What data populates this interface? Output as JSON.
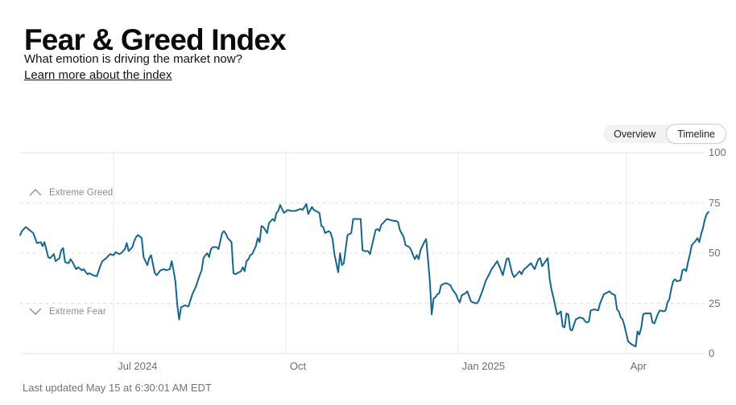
{
  "header": {
    "title": "Fear & Greed Index",
    "subtitle": "What emotion is driving the market now?",
    "link_label": "Learn more about the index"
  },
  "view_toggle": {
    "options": [
      {
        "label": "Overview",
        "selected": false
      },
      {
        "label": "Timeline",
        "selected": true
      }
    ]
  },
  "footer": {
    "last_updated": "Last updated May 15 at 6:30:01 AM EDT"
  },
  "chart_data": {
    "type": "line",
    "title": "Fear & Greed Index timeline",
    "ylim": [
      0,
      100
    ],
    "y_ticks": [
      0,
      25,
      50,
      75,
      100
    ],
    "x_ticks": [
      {
        "date": "2024-07-01",
        "label": "Jul 2024"
      },
      {
        "date": "2024-10-01",
        "label": "Oct"
      },
      {
        "date": "2025-01-01",
        "label": "Jan 2025"
      },
      {
        "date": "2025-04-01",
        "label": "Apr"
      }
    ],
    "thresholds": [
      {
        "value": 75,
        "label": "Extreme Greed",
        "icon": "chevron-up-icon"
      },
      {
        "value": 25,
        "label": "Extreme Fear",
        "icon": "chevron-down-icon"
      }
    ],
    "line_color": "#15668F",
    "grid_solid_color": "#ebebeb",
    "grid_dashed_color": "#d9d9d9",
    "grid": true,
    "legend_position": "none",
    "series": [
      {
        "name": "Fear & Greed Index",
        "points": [
          [
            "2024-05-12",
            59
          ],
          [
            "2024-05-13",
            61
          ],
          [
            "2024-05-15",
            63
          ],
          [
            "2024-05-17",
            61.5
          ],
          [
            "2024-05-19",
            60
          ],
          [
            "2024-05-21",
            55
          ],
          [
            "2024-05-23",
            55.5
          ],
          [
            "2024-05-24",
            53.5
          ],
          [
            "2024-05-25",
            55.5
          ],
          [
            "2024-05-27",
            48
          ],
          [
            "2024-05-28",
            47.5
          ],
          [
            "2024-05-30",
            49.5
          ],
          [
            "2024-05-31",
            46
          ],
          [
            "2024-06-02",
            47.5
          ],
          [
            "2024-06-03",
            51.5
          ],
          [
            "2024-06-04",
            52.5
          ],
          [
            "2024-06-05",
            45.5
          ],
          [
            "2024-06-07",
            45
          ],
          [
            "2024-06-08",
            47
          ],
          [
            "2024-06-09",
            45.5
          ],
          [
            "2024-06-11",
            42
          ],
          [
            "2024-06-12",
            43
          ],
          [
            "2024-06-14",
            41.5
          ],
          [
            "2024-06-15",
            42
          ],
          [
            "2024-06-17",
            39.5
          ],
          [
            "2024-06-18",
            40
          ],
          [
            "2024-06-20",
            39
          ],
          [
            "2024-06-22",
            38.5
          ],
          [
            "2024-06-24",
            44
          ],
          [
            "2024-06-25",
            46
          ],
          [
            "2024-06-27",
            47.5
          ],
          [
            "2024-06-29",
            49.5
          ],
          [
            "2024-07-01",
            49
          ],
          [
            "2024-07-02",
            50.5
          ],
          [
            "2024-07-04",
            49.5
          ],
          [
            "2024-07-05",
            50
          ],
          [
            "2024-07-07",
            52
          ],
          [
            "2024-07-08",
            55
          ],
          [
            "2024-07-09",
            51
          ],
          [
            "2024-07-11",
            53
          ],
          [
            "2024-07-12",
            56
          ],
          [
            "2024-07-13",
            58
          ],
          [
            "2024-07-14",
            59
          ],
          [
            "2024-07-16",
            57.5
          ],
          [
            "2024-07-17",
            48
          ],
          [
            "2024-07-19",
            44
          ],
          [
            "2024-07-20",
            47.5
          ],
          [
            "2024-07-21",
            49
          ],
          [
            "2024-07-23",
            40
          ],
          [
            "2024-07-24",
            39
          ],
          [
            "2024-07-26",
            41.5
          ],
          [
            "2024-07-28",
            42
          ],
          [
            "2024-07-29",
            41.5
          ],
          [
            "2024-07-31",
            42
          ],
          [
            "2024-08-01",
            46
          ],
          [
            "2024-08-02",
            41.5
          ],
          [
            "2024-08-03",
            36
          ],
          [
            "2024-08-04",
            24
          ],
          [
            "2024-08-05",
            17
          ],
          [
            "2024-08-06",
            23
          ],
          [
            "2024-08-07",
            23.5
          ],
          [
            "2024-08-08",
            24
          ],
          [
            "2024-08-10",
            23.5
          ],
          [
            "2024-08-12",
            29.5
          ],
          [
            "2024-08-13",
            31.5
          ],
          [
            "2024-08-14",
            33.5
          ],
          [
            "2024-08-16",
            39
          ],
          [
            "2024-08-17",
            41.5
          ],
          [
            "2024-08-18",
            47.5
          ],
          [
            "2024-08-19",
            49
          ],
          [
            "2024-08-20",
            50
          ],
          [
            "2024-08-21",
            48
          ],
          [
            "2024-08-22",
            52
          ],
          [
            "2024-08-23",
            53
          ],
          [
            "2024-08-25",
            53
          ],
          [
            "2024-08-26",
            52
          ],
          [
            "2024-08-28",
            60
          ],
          [
            "2024-08-29",
            61
          ],
          [
            "2024-08-30",
            59.5
          ],
          [
            "2024-08-31",
            57.5
          ],
          [
            "2024-09-02",
            55.5
          ],
          [
            "2024-09-03",
            40
          ],
          [
            "2024-09-04",
            39.5
          ],
          [
            "2024-09-05",
            40
          ],
          [
            "2024-09-07",
            41
          ],
          [
            "2024-09-08",
            43
          ],
          [
            "2024-09-09",
            41
          ],
          [
            "2024-09-10",
            46
          ],
          [
            "2024-09-11",
            47
          ],
          [
            "2024-09-12",
            49
          ],
          [
            "2024-09-13",
            49.5
          ],
          [
            "2024-09-15",
            53.5
          ],
          [
            "2024-09-16",
            57.5
          ],
          [
            "2024-09-17",
            55.5
          ],
          [
            "2024-09-18",
            63.5
          ],
          [
            "2024-09-19",
            63
          ],
          [
            "2024-09-21",
            60
          ],
          [
            "2024-09-22",
            65
          ],
          [
            "2024-09-24",
            67
          ],
          [
            "2024-09-25",
            66
          ],
          [
            "2024-09-26",
            70
          ],
          [
            "2024-09-27",
            71
          ],
          [
            "2024-09-28",
            74
          ],
          [
            "2024-09-30",
            70
          ],
          [
            "2024-10-02",
            71.5
          ],
          [
            "2024-10-04",
            71
          ],
          [
            "2024-10-06",
            71
          ],
          [
            "2024-10-09",
            72
          ],
          [
            "2024-10-10",
            71.5
          ],
          [
            "2024-10-12",
            74.5
          ],
          [
            "2024-10-13",
            69.5
          ],
          [
            "2024-10-15",
            73
          ],
          [
            "2024-10-16",
            71.5
          ],
          [
            "2024-10-19",
            70
          ],
          [
            "2024-10-20",
            63.5
          ],
          [
            "2024-10-21",
            63
          ],
          [
            "2024-10-22",
            60
          ],
          [
            "2024-10-24",
            61
          ],
          [
            "2024-10-25",
            60
          ],
          [
            "2024-10-26",
            57
          ],
          [
            "2024-10-27",
            49.5
          ],
          [
            "2024-10-29",
            40.5
          ],
          [
            "2024-10-30",
            50
          ],
          [
            "2024-10-31",
            44
          ],
          [
            "2024-11-01",
            45
          ],
          [
            "2024-11-03",
            59
          ],
          [
            "2024-11-05",
            60
          ],
          [
            "2024-11-06",
            67
          ],
          [
            "2024-11-08",
            67
          ],
          [
            "2024-11-10",
            67
          ],
          [
            "2024-11-11",
            51.5
          ],
          [
            "2024-11-12",
            51
          ],
          [
            "2024-11-14",
            51
          ],
          [
            "2024-11-15",
            49.5
          ],
          [
            "2024-11-18",
            61.5
          ],
          [
            "2024-11-19",
            62
          ],
          [
            "2024-11-20",
            61
          ],
          [
            "2024-11-21",
            64
          ],
          [
            "2024-11-23",
            66
          ],
          [
            "2024-11-24",
            67
          ],
          [
            "2024-11-26",
            66.5
          ],
          [
            "2024-11-28",
            66
          ],
          [
            "2024-11-29",
            66
          ],
          [
            "2024-11-30",
            65.5
          ],
          [
            "2024-12-01",
            61.5
          ],
          [
            "2024-12-03",
            58
          ],
          [
            "2024-12-04",
            54
          ],
          [
            "2024-12-06",
            53
          ],
          [
            "2024-12-07",
            51.5
          ],
          [
            "2024-12-08",
            49
          ],
          [
            "2024-12-09",
            47
          ],
          [
            "2024-12-10",
            49
          ],
          [
            "2024-12-11",
            47
          ],
          [
            "2024-12-12",
            51.5
          ],
          [
            "2024-12-14",
            55.5
          ],
          [
            "2024-12-15",
            57
          ],
          [
            "2024-12-16",
            47
          ],
          [
            "2024-12-17",
            36
          ],
          [
            "2024-12-18",
            19.5
          ],
          [
            "2024-12-19",
            27.5
          ],
          [
            "2024-12-20",
            28
          ],
          [
            "2024-12-21",
            29.5
          ],
          [
            "2024-12-22",
            30
          ],
          [
            "2024-12-23",
            34
          ],
          [
            "2024-12-25",
            35
          ],
          [
            "2024-12-26",
            35
          ],
          [
            "2024-12-28",
            34
          ],
          [
            "2024-12-29",
            32
          ],
          [
            "2024-12-31",
            29.5
          ],
          [
            "2025-01-01",
            27
          ],
          [
            "2025-01-02",
            25.5
          ],
          [
            "2025-01-03",
            29
          ],
          [
            "2025-01-05",
            30
          ],
          [
            "2025-01-06",
            31
          ],
          [
            "2025-01-08",
            26
          ],
          [
            "2025-01-09",
            25.5
          ],
          [
            "2025-01-11",
            25
          ],
          [
            "2025-01-12",
            26
          ],
          [
            "2025-01-14",
            31
          ],
          [
            "2025-01-16",
            36.5
          ],
          [
            "2025-01-18",
            40
          ],
          [
            "2025-01-19",
            42
          ],
          [
            "2025-01-22",
            46
          ],
          [
            "2025-01-24",
            41.5
          ],
          [
            "2025-01-25",
            39
          ],
          [
            "2025-01-27",
            47
          ],
          [
            "2025-01-28",
            47.5
          ],
          [
            "2025-01-30",
            40
          ],
          [
            "2025-01-31",
            38
          ],
          [
            "2025-02-02",
            40
          ],
          [
            "2025-02-03",
            41
          ],
          [
            "2025-02-04",
            39.5
          ],
          [
            "2025-02-05",
            41.5
          ],
          [
            "2025-02-09",
            45
          ],
          [
            "2025-02-11",
            42
          ],
          [
            "2025-02-13",
            47
          ],
          [
            "2025-02-14",
            47.5
          ],
          [
            "2025-02-15",
            43.5
          ],
          [
            "2025-02-18",
            47.5
          ],
          [
            "2025-02-19",
            37.5
          ],
          [
            "2025-02-20",
            32
          ],
          [
            "2025-02-21",
            28
          ],
          [
            "2025-02-23",
            19.5
          ],
          [
            "2025-02-24",
            20
          ],
          [
            "2025-02-25",
            21
          ],
          [
            "2025-02-26",
            13.5
          ],
          [
            "2025-02-27",
            13
          ],
          [
            "2025-02-28",
            20
          ],
          [
            "2025-03-01",
            19.5
          ],
          [
            "2025-03-02",
            12
          ],
          [
            "2025-03-03",
            11.5
          ],
          [
            "2025-03-05",
            17
          ],
          [
            "2025-03-06",
            17.5
          ],
          [
            "2025-03-07",
            18
          ],
          [
            "2025-03-09",
            17.5
          ],
          [
            "2025-03-10",
            16
          ],
          [
            "2025-03-11",
            15.5
          ],
          [
            "2025-03-12",
            16
          ],
          [
            "2025-03-13",
            21.5
          ],
          [
            "2025-03-15",
            22
          ],
          [
            "2025-03-17",
            21.5
          ],
          [
            "2025-03-18",
            25
          ],
          [
            "2025-03-20",
            29.5
          ],
          [
            "2025-03-23",
            31
          ],
          [
            "2025-03-24",
            30
          ],
          [
            "2025-03-26",
            29
          ],
          [
            "2025-03-27",
            22
          ],
          [
            "2025-03-28",
            21
          ],
          [
            "2025-03-29",
            18
          ],
          [
            "2025-03-30",
            17
          ],
          [
            "2025-03-31",
            14
          ],
          [
            "2025-04-02",
            6
          ],
          [
            "2025-04-04",
            4.5
          ],
          [
            "2025-04-05",
            4
          ],
          [
            "2025-04-06",
            3.5
          ],
          [
            "2025-04-07",
            11
          ],
          [
            "2025-04-08",
            9.5
          ],
          [
            "2025-04-09",
            13
          ],
          [
            "2025-04-10",
            19.5
          ],
          [
            "2025-04-11",
            20
          ],
          [
            "2025-04-13",
            20
          ],
          [
            "2025-04-14",
            20
          ],
          [
            "2025-04-15",
            15.5
          ],
          [
            "2025-04-16",
            15
          ],
          [
            "2025-04-18",
            20
          ],
          [
            "2025-04-19",
            21.5
          ],
          [
            "2025-04-21",
            21
          ],
          [
            "2025-04-22",
            21.5
          ],
          [
            "2025-04-23",
            25.5
          ],
          [
            "2025-04-24",
            27
          ],
          [
            "2025-04-25",
            32
          ],
          [
            "2025-04-26",
            36
          ],
          [
            "2025-04-27",
            37
          ],
          [
            "2025-04-28",
            36
          ],
          [
            "2025-04-30",
            36.5
          ],
          [
            "2025-05-01",
            41.5
          ],
          [
            "2025-05-02",
            42
          ],
          [
            "2025-05-03",
            41
          ],
          [
            "2025-05-04",
            45.5
          ],
          [
            "2025-05-05",
            49.5
          ],
          [
            "2025-05-06",
            54
          ],
          [
            "2025-05-07",
            55
          ],
          [
            "2025-05-08",
            56
          ],
          [
            "2025-05-09",
            57.5
          ],
          [
            "2025-05-10",
            55.5
          ],
          [
            "2025-05-11",
            59.5
          ],
          [
            "2025-05-12",
            62.5
          ],
          [
            "2025-05-13",
            67
          ],
          [
            "2025-05-14",
            69.5
          ],
          [
            "2025-05-15",
            70.5
          ]
        ]
      }
    ]
  }
}
